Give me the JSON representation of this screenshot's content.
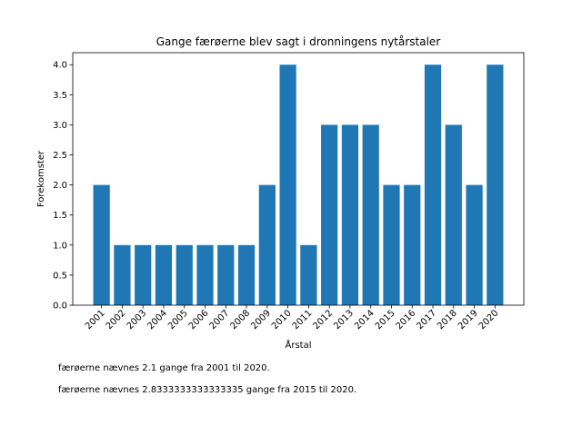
{
  "chart_data": {
    "type": "bar",
    "title": "Gange færøerne blev sagt i dronningens nytårstaler",
    "xlabel": "Årstal",
    "ylabel": "Forekomster",
    "categories": [
      "2001",
      "2002",
      "2003",
      "2004",
      "2005",
      "2006",
      "2007",
      "2008",
      "2009",
      "2010",
      "2011",
      "2012",
      "2013",
      "2014",
      "2015",
      "2016",
      "2017",
      "2018",
      "2019",
      "2020"
    ],
    "values": [
      2,
      1,
      1,
      1,
      1,
      1,
      1,
      1,
      2,
      4,
      1,
      3,
      3,
      3,
      2,
      2,
      4,
      3,
      2,
      4
    ],
    "color": "#1f77b4",
    "ylim": [
      0,
      4.2
    ],
    "yticks": [
      {
        "value": 0,
        "label": "0.0"
      },
      0.5,
      {
        "value": 1,
        "label": "1.0"
      },
      1.5,
      {
        "value": 2,
        "label": "2.0"
      },
      2.5,
      {
        "value": 3,
        "label": "3.0"
      },
      3.5,
      {
        "value": 4,
        "label": "4.0"
      }
    ],
    "grid": false,
    "annotations": [
      "færøerne nævnes 2.1 gange fra 2001 til 2020.",
      "færøerne nævnes 2.8333333333333335 gange fra 2015 til 2020."
    ]
  }
}
